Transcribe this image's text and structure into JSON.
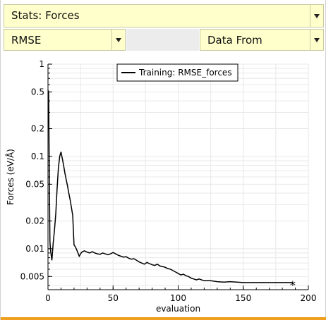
{
  "stats_select": {
    "label": "Stats: Forces"
  },
  "metric_select": {
    "label": "RMSE"
  },
  "source_select": {
    "label": "Data From"
  },
  "chart_data": {
    "type": "line",
    "xlabel": "evaluation",
    "ylabel": "Forces (eV/Å)",
    "xlim": [
      0,
      200
    ],
    "ylim": [
      0.0036,
      1
    ],
    "yscale": "log",
    "grid": true,
    "legend_position": "top-right",
    "xticks": [
      0,
      50,
      100,
      150,
      200
    ],
    "xtick_labels": [
      "0",
      "50",
      "100",
      "150",
      "200"
    ],
    "yticks": [
      1,
      0.5,
      0.2,
      0.1,
      0.05,
      0.02,
      0.01,
      0.005
    ],
    "ytick_labels": [
      "1",
      "0.5",
      "0.2",
      "0.1",
      "0.05",
      "0.02",
      "0.01",
      "0.005"
    ],
    "series": [
      {
        "name": "Training: RMSE_forces",
        "color": "#000000",
        "end_marker": "asterisk",
        "x": [
          0,
          0.5,
          1,
          1.5,
          2,
          3,
          4,
          5,
          6,
          7,
          8,
          9,
          10,
          11,
          12,
          13,
          14,
          15,
          16,
          17,
          18,
          19,
          20,
          21,
          22,
          23,
          24,
          25,
          26,
          28,
          30,
          32,
          34,
          36,
          38,
          40,
          42,
          44,
          46,
          48,
          50,
          52,
          54,
          56,
          58,
          60,
          62,
          64,
          66,
          68,
          70,
          72,
          74,
          76,
          78,
          80,
          82,
          84,
          86,
          88,
          90,
          92,
          94,
          96,
          98,
          100,
          102,
          104,
          106,
          108,
          110,
          112,
          114,
          116,
          118,
          120,
          125,
          130,
          135,
          140,
          145,
          150,
          155,
          160,
          165,
          170,
          175,
          180,
          185,
          188
        ],
        "y": [
          0.52,
          0.5,
          0.066,
          0.012,
          0.0095,
          0.0075,
          0.0115,
          0.016,
          0.024,
          0.045,
          0.075,
          0.1,
          0.112,
          0.095,
          0.08,
          0.066,
          0.056,
          0.048,
          0.04,
          0.034,
          0.028,
          0.023,
          0.011,
          0.0105,
          0.0098,
          0.009,
          0.0083,
          0.0088,
          0.0092,
          0.0095,
          0.0092,
          0.009,
          0.0093,
          0.009,
          0.0088,
          0.0087,
          0.009,
          0.0088,
          0.0086,
          0.0088,
          0.0091,
          0.0088,
          0.0085,
          0.0083,
          0.0081,
          0.0082,
          0.0079,
          0.0077,
          0.0078,
          0.0075,
          0.0072,
          0.007,
          0.0068,
          0.0071,
          0.0069,
          0.0067,
          0.0066,
          0.0068,
          0.0065,
          0.0064,
          0.0063,
          0.0061,
          0.006,
          0.0058,
          0.0056,
          0.0054,
          0.0052,
          0.0053,
          0.0051,
          0.005,
          0.0048,
          0.0047,
          0.0046,
          0.0047,
          0.0046,
          0.0045,
          0.0045,
          0.0044,
          0.00435,
          0.0044,
          0.00435,
          0.0043,
          0.0043,
          0.0043,
          0.0043,
          0.0043,
          0.0043,
          0.0043,
          0.0043,
          0.0043
        ]
      }
    ]
  }
}
